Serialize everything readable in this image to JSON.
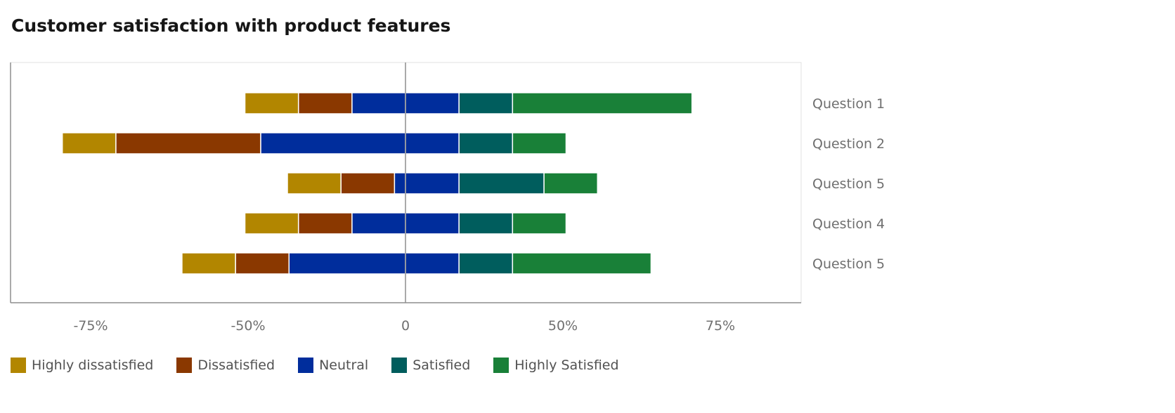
{
  "chart_data": {
    "type": "bar",
    "orientation": "horizontal",
    "stacked": "diverging",
    "title": "Customer satisfaction with product features",
    "categories": [
      "Question 1",
      "Question 2",
      "Question 5",
      "Question 4",
      "Question 5"
    ],
    "x_tick_labels": [
      "-75%",
      "-50%",
      "0",
      "50%",
      "75%"
    ],
    "series_names": [
      "Highly dissatisfied",
      "Dissatisfied",
      "Neutral",
      "Satisfied",
      "Highly Satisfied"
    ],
    "colors": [
      "#b28600",
      "#8a3800",
      "#002d9c",
      "#005d5d",
      "#198038"
    ],
    "left": [
      {
        "Highly dissatisfied": 17,
        "Dissatisfied": 17,
        "Neutral": 17
      },
      {
        "Highly dissatisfied": 17,
        "Dissatisfied": 46,
        "Neutral": 46
      },
      {
        "Highly dissatisfied": 17,
        "Dissatisfied": 17,
        "Neutral": 3.5
      },
      {
        "Highly dissatisfied": 17,
        "Dissatisfied": 17,
        "Neutral": 17
      },
      {
        "Highly dissatisfied": 17,
        "Dissatisfied": 17,
        "Neutral": 37
      }
    ],
    "right": [
      {
        "Neutral": 17,
        "Satisfied": 17,
        "Highly Satisfied": 57
      },
      {
        "Neutral": 17,
        "Satisfied": 17,
        "Highly Satisfied": 17
      },
      {
        "Neutral": 17,
        "Satisfied": 27,
        "Highly Satisfied": 17
      },
      {
        "Neutral": 17,
        "Satisfied": 17,
        "Highly Satisfied": 17
      },
      {
        "Neutral": 17,
        "Satisfied": 17,
        "Highly Satisfied": 44
      }
    ],
    "grid": false,
    "legend_position": "bottom-left"
  }
}
